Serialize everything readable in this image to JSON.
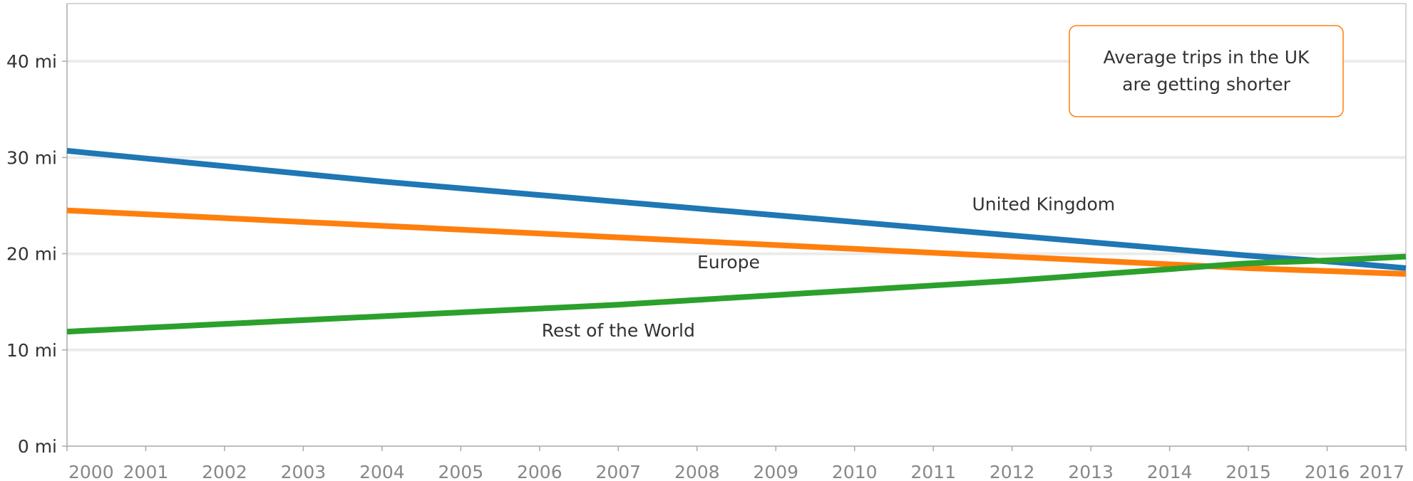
{
  "chart_data": {
    "type": "line",
    "title": "",
    "xlabel": "",
    "ylabel": "",
    "x": [
      2000,
      2001,
      2002,
      2003,
      2004,
      2005,
      2006,
      2007,
      2008,
      2009,
      2010,
      2011,
      2012,
      2013,
      2014,
      2015,
      2016,
      2017
    ],
    "x_tick_labels": [
      "2000",
      "2001",
      "2002",
      "2003",
      "2004",
      "2005",
      "2006",
      "2007",
      "2008",
      "2009",
      "2010",
      "2011",
      "2012",
      "2013",
      "2014",
      "2015",
      "2016",
      "2017"
    ],
    "x_range": [
      2000,
      2017
    ],
    "y_ticks": [
      0,
      10,
      20,
      30,
      40
    ],
    "y_tick_labels": [
      "0 mi",
      "10 mi",
      "20 mi",
      "30 mi",
      "40 mi"
    ],
    "ylim": [
      0,
      46
    ],
    "grid": true,
    "legend": "none (direct labels)",
    "series": [
      {
        "name": "United Kingdom",
        "color": "#1f77b4",
        "values": [
          30.7,
          29.9,
          29.1,
          28.3,
          27.5,
          26.8,
          26.1,
          25.4,
          24.7,
          24.0,
          23.3,
          22.6,
          21.9,
          21.2,
          20.5,
          19.8,
          19.2,
          18.5
        ]
      },
      {
        "name": "Europe",
        "color": "#ff7f0e",
        "values": [
          24.5,
          24.1,
          23.7,
          23.3,
          22.9,
          22.5,
          22.1,
          21.7,
          21.3,
          20.9,
          20.5,
          20.1,
          19.7,
          19.3,
          18.9,
          18.5,
          18.2,
          17.9
        ]
      },
      {
        "name": "Rest of the World",
        "color": "#2ca02c",
        "values": [
          11.9,
          12.3,
          12.7,
          13.1,
          13.5,
          13.9,
          14.3,
          14.7,
          15.2,
          15.7,
          16.2,
          16.7,
          17.2,
          17.8,
          18.4,
          19.0,
          19.3,
          19.7
        ]
      }
    ],
    "annotations": [
      {
        "text_lines": [
          "Average trips in the UK",
          "are getting shorter"
        ],
        "border_color": "#ff7f0e",
        "placement": "top-right"
      }
    ],
    "series_label_anchors": [
      {
        "series": "United Kingdom",
        "x": 2012.4,
        "y": 24.5
      },
      {
        "series": "Europe",
        "x": 2008.4,
        "y": 18.5
      },
      {
        "series": "Rest of the World",
        "x": 2007.0,
        "y": 11.4
      }
    ]
  }
}
